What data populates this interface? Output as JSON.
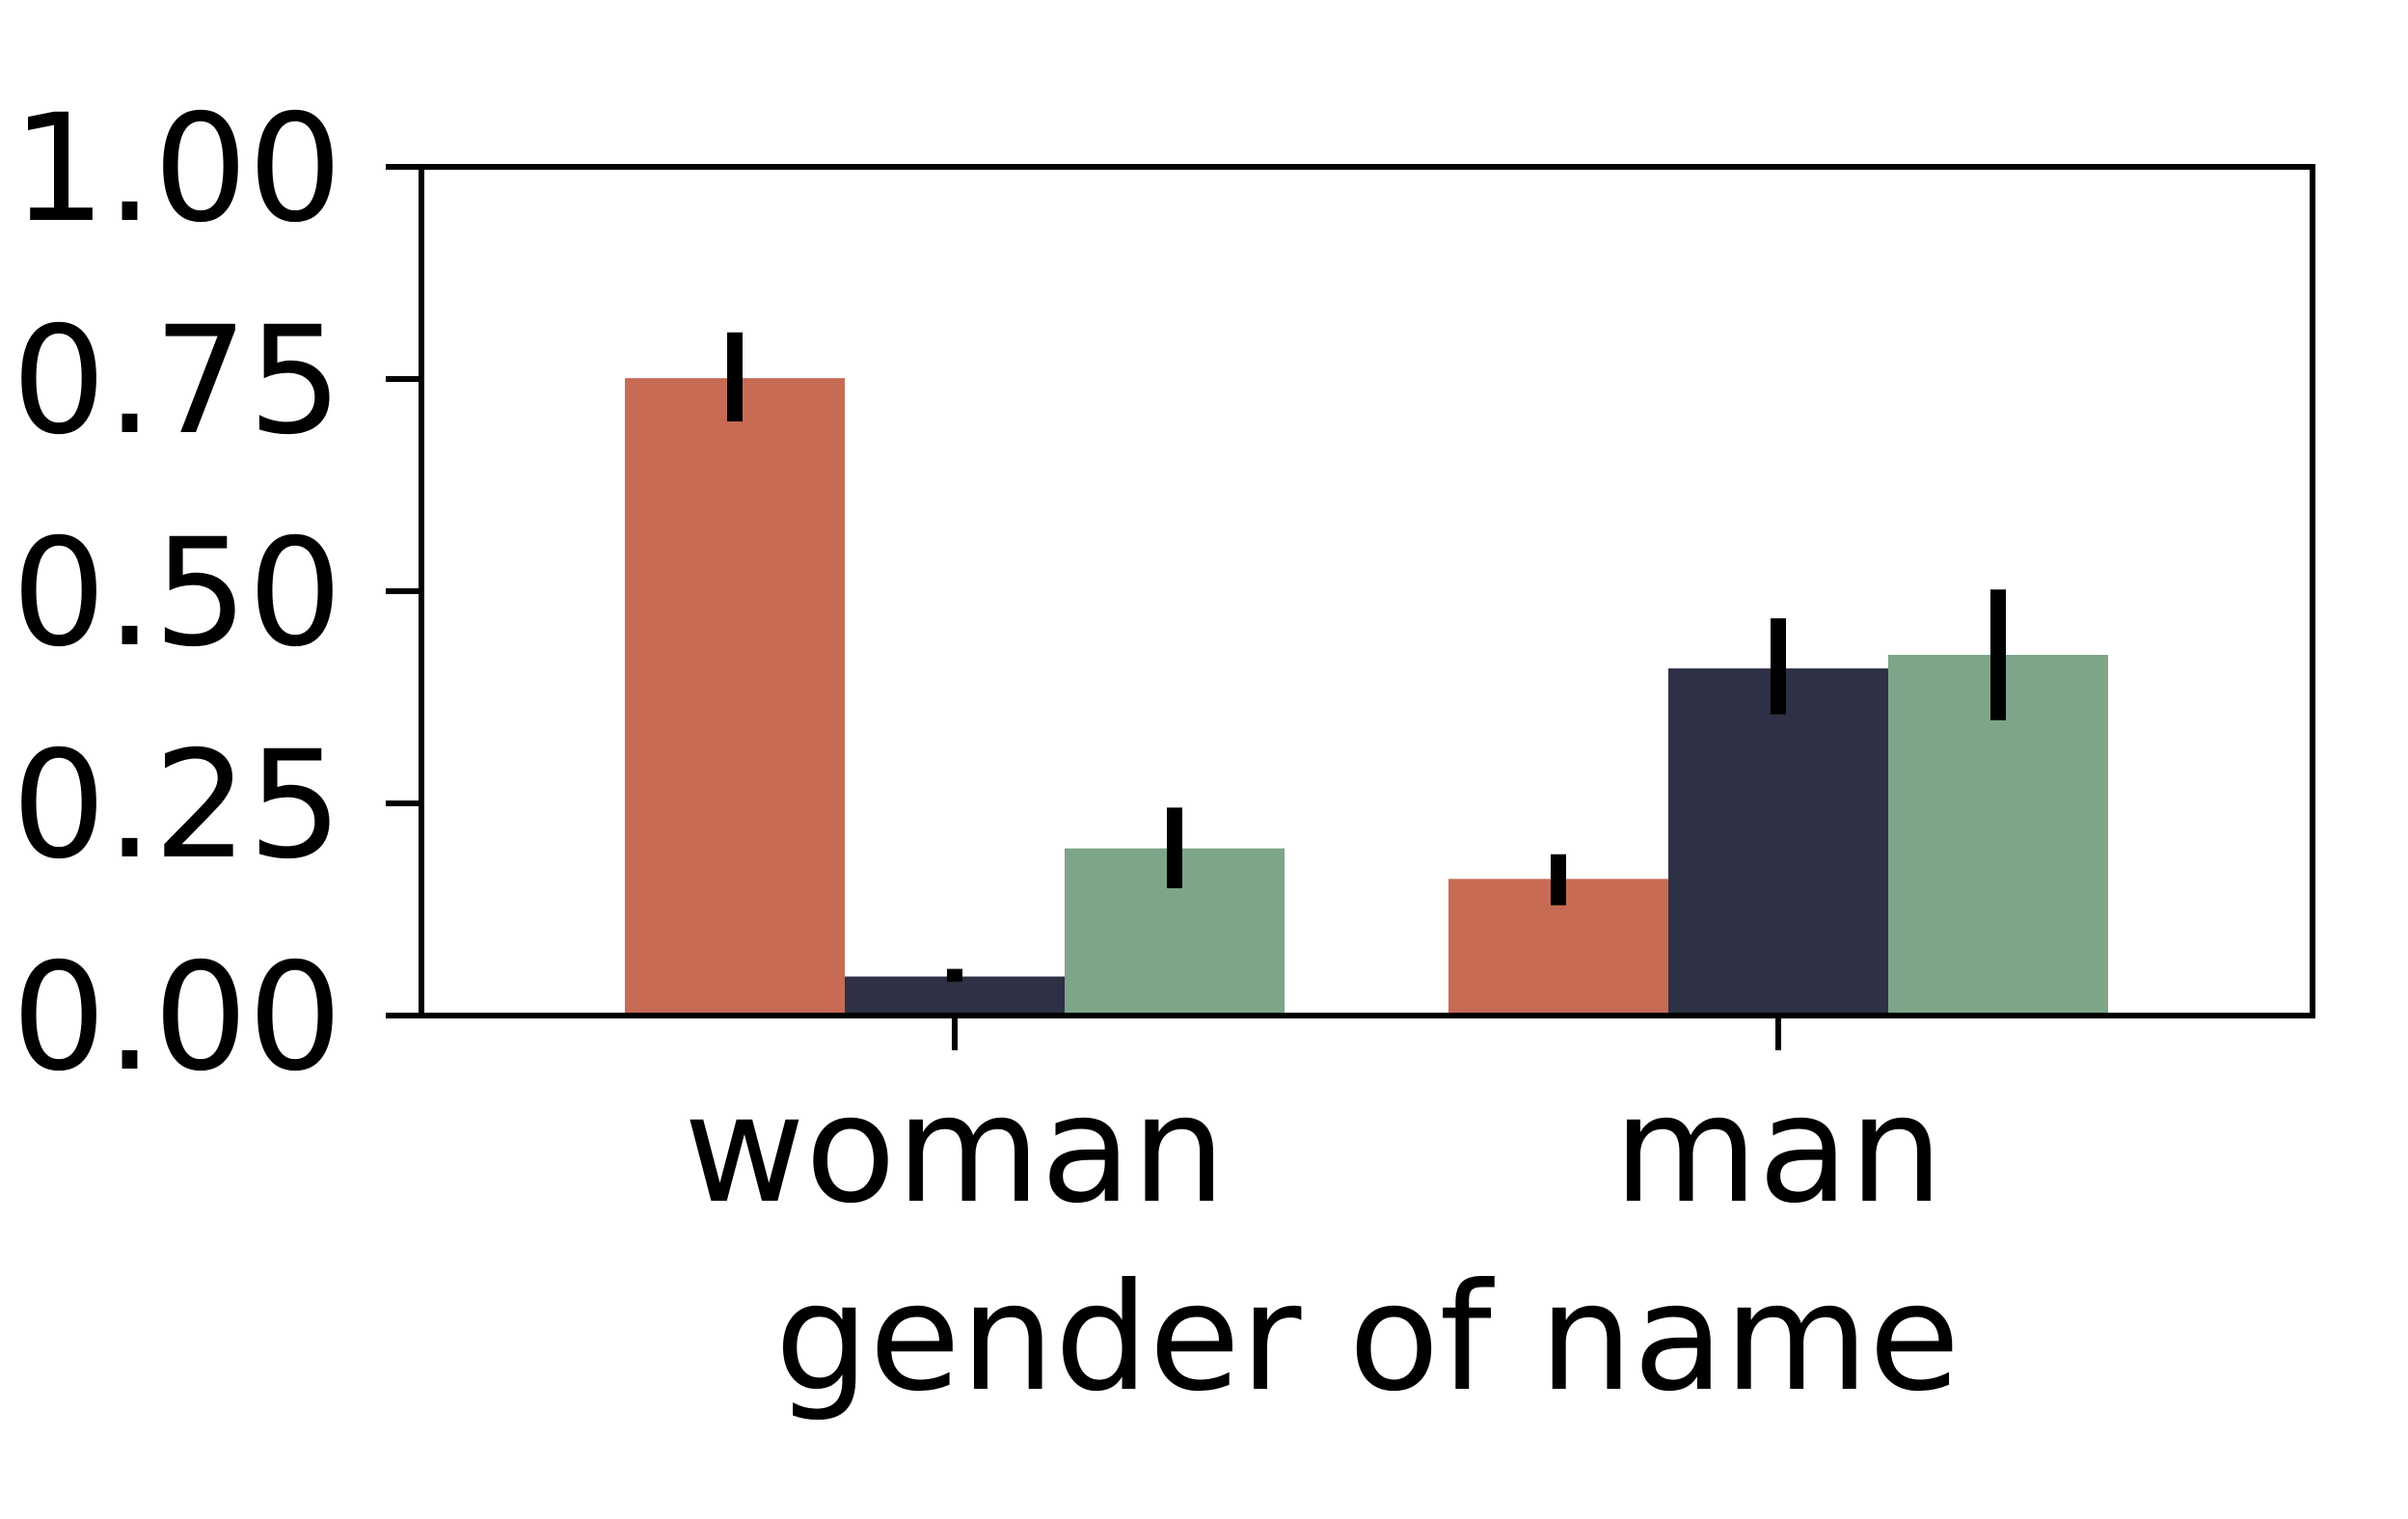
{
  "chart_data": {
    "type": "bar",
    "title": "",
    "xlabel": "gender of name",
    "ylabel": "",
    "categories": [
      "woman",
      "man"
    ],
    "ylim": [
      0,
      1
    ],
    "yticks": [
      "0.00",
      "0.25",
      "0.50",
      "0.75",
      "1.00"
    ],
    "grid": false,
    "legend": "none",
    "series": [
      {
        "color": "#c76b55",
        "values": [
          0.751,
          0.161
        ],
        "error": [
          [
            0.7,
            0.805
          ],
          [
            0.13,
            0.19
          ]
        ]
      },
      {
        "color": "#2e3045",
        "values": [
          0.046,
          0.409
        ],
        "error": [
          [
            0.04,
            0.055
          ],
          [
            0.355,
            0.468
          ]
        ]
      },
      {
        "color": "#7da588",
        "values": [
          0.197,
          0.425
        ],
        "error": [
          [
            0.15,
            0.245
          ],
          [
            0.348,
            0.502
          ]
        ]
      }
    ]
  }
}
